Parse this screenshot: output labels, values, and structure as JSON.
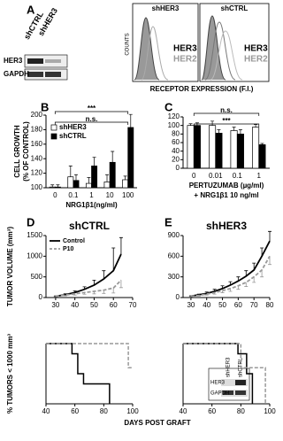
{
  "figure": {
    "panel": "A",
    "blot_lanes": [
      "shCTRL",
      "shHER3"
    ],
    "blot_rows": [
      "HER3",
      "GAPDH"
    ],
    "hist_titles": [
      "shHER3",
      "shCTRL"
    ],
    "hist_ylabel": "COUNTS",
    "hist_legend": [
      "HER3",
      "HER2"
    ],
    "hist_xlabel": "RECEPTOR EXPRESSION (F.I.)",
    "inset_lanes": [
      "shHER3",
      "shCTRL"
    ],
    "inset_rows": [
      "HER3",
      "GAPDH"
    ]
  },
  "chart_data": [
    {
      "type": "bar",
      "panel": "B",
      "ylabel": [
        "CELL GROWTH",
        "(% OF CONTROL)"
      ],
      "xlabel": "NRG1β1(ng/ml)",
      "categories": [
        "0",
        "0.1",
        "1",
        "10",
        "100"
      ],
      "ylim": [
        100,
        200
      ],
      "yticks": [
        100,
        120,
        140,
        160,
        180,
        200
      ],
      "series": [
        {
          "name": "shHER3",
          "color": "#ffffff",
          "values": [
            101,
            115,
            106,
            108,
            111
          ],
          "errors": [
            3,
            15,
            8,
            10,
            5
          ]
        },
        {
          "name": "shCTRL",
          "color": "#000000",
          "values": [
            101,
            110,
            130,
            135,
            183
          ],
          "errors": [
            3,
            8,
            12,
            15,
            18
          ]
        }
      ],
      "legend": true,
      "annotations": [
        "***",
        "n.s."
      ]
    },
    {
      "type": "bar",
      "panel": "C",
      "xlabel": "PERTUZUMAB (µg/ml)",
      "note": "+ NRG1β1 10 ng/ml",
      "categories": [
        "0",
        "0.01",
        "0.1",
        "1"
      ],
      "ylim": [
        0,
        120
      ],
      "yticks": [
        0,
        20,
        40,
        60,
        80,
        100,
        120
      ],
      "series": [
        {
          "color": "#ffffff",
          "values": [
            100,
            100,
            88,
            96
          ],
          "errors": [
            4,
            10,
            8,
            6
          ]
        },
        {
          "color": "#000000",
          "values": [
            100,
            82,
            80,
            55
          ],
          "errors": [
            6,
            8,
            10,
            3
          ]
        }
      ],
      "legend": false,
      "annotations": [
        "n.s.",
        "***"
      ]
    },
    {
      "type": "line",
      "panel": "D",
      "title": "shCTRL",
      "ylabel": "TUMOR VOLUME (mm³)",
      "x": [
        30,
        35,
        40,
        45,
        50,
        55,
        60,
        64
      ],
      "xlim": [
        25,
        70
      ],
      "xticks": [
        30,
        40,
        50,
        60,
        70
      ],
      "ylim": [
        0,
        1500
      ],
      "yticks": [
        0,
        500,
        1000,
        1500
      ],
      "series": [
        {
          "name": "Control",
          "color": "#000000",
          "values": [
            30,
            70,
            120,
            200,
            300,
            450,
            650,
            1050
          ],
          "errors": [
            10,
            20,
            40,
            60,
            120,
            200,
            550,
            400
          ]
        },
        {
          "name": "P10",
          "color": "#999999",
          "dash": true,
          "values": [
            30,
            60,
            90,
            120,
            150,
            180,
            230,
            420
          ],
          "errors": [
            10,
            20,
            30,
            40,
            60,
            80,
            120,
            180
          ]
        }
      ],
      "legend": true
    },
    {
      "type": "line",
      "panel": "E",
      "title": "shHER3",
      "x": [
        30,
        35,
        40,
        45,
        50,
        55,
        60,
        65,
        70,
        75,
        80
      ],
      "xlim": [
        25,
        80
      ],
      "xticks": [
        30,
        40,
        50,
        60,
        70,
        80
      ],
      "ylim": [
        0,
        900
      ],
      "yticks": [
        0,
        300,
        600,
        900
      ],
      "series": [
        {
          "color": "#000000",
          "values": [
            20,
            40,
            60,
            90,
            130,
            180,
            240,
            310,
            400,
            600,
            820
          ],
          "errors": [
            5,
            10,
            20,
            30,
            40,
            50,
            60,
            80,
            100,
            120,
            140
          ]
        },
        {
          "color": "#999999",
          "dash": true,
          "values": [
            20,
            30,
            50,
            70,
            100,
            130,
            170,
            220,
            300,
            400,
            600
          ],
          "errors": [
            5,
            10,
            15,
            20,
            30,
            40,
            50,
            60,
            80,
            100,
            120
          ]
        }
      ],
      "legend": false
    },
    {
      "type": "step",
      "ylabel": "% TUMORS < 1000 mm³",
      "xlabel": "DAYS POST GRAFT",
      "xlim": [
        40,
        100
      ],
      "xticks": [
        40,
        60,
        80,
        100
      ],
      "ylim": [
        0,
        100
      ],
      "series": [
        {
          "color": "#000000",
          "x": [
            40,
            58,
            62,
            66,
            84
          ],
          "values": [
            100,
            83,
            50,
            33,
            0
          ]
        },
        {
          "color": "#999999",
          "dash": true,
          "x": [
            40,
            97,
            100
          ],
          "values": [
            100,
            60,
            60
          ]
        }
      ]
    },
    {
      "type": "step",
      "xlim": [
        40,
        100
      ],
      "xticks": [
        40,
        60,
        80,
        100
      ],
      "ylim": [
        0,
        100
      ],
      "series": [
        {
          "color": "#000000",
          "x": [
            40,
            78,
            84,
            88
          ],
          "values": [
            100,
            83,
            50,
            0
          ]
        },
        {
          "color": "#999999",
          "dash": true,
          "x": [
            40,
            80,
            93,
            97
          ],
          "values": [
            100,
            60,
            60,
            0
          ]
        }
      ]
    }
  ]
}
